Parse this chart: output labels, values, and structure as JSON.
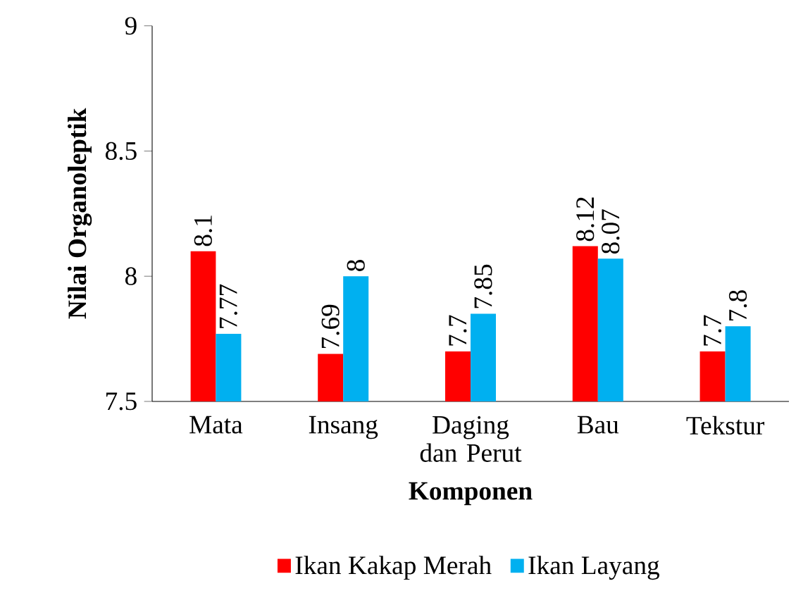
{
  "chart_data": {
    "type": "bar",
    "xlabel": "Komponen",
    "ylabel": "Nilai Organoleptik",
    "categories": [
      "Mata",
      "Insang",
      "Daging dan Perut",
      "Bau",
      "Tekstur"
    ],
    "series": [
      {
        "name": "Ikan Kakap Merah",
        "color": "#ff0000",
        "values": [
          8.1,
          7.69,
          7.7,
          8.12,
          7.7
        ]
      },
      {
        "name": "Ikan Layang",
        "color": "#00b0f0",
        "values": [
          7.77,
          8,
          7.85,
          8.07,
          7.8
        ]
      }
    ],
    "ylim": [
      7.5,
      9
    ],
    "yticks": [
      7.5,
      8,
      8.5,
      9
    ],
    "data_labels": true,
    "legend": "bottom",
    "grid": false
  }
}
